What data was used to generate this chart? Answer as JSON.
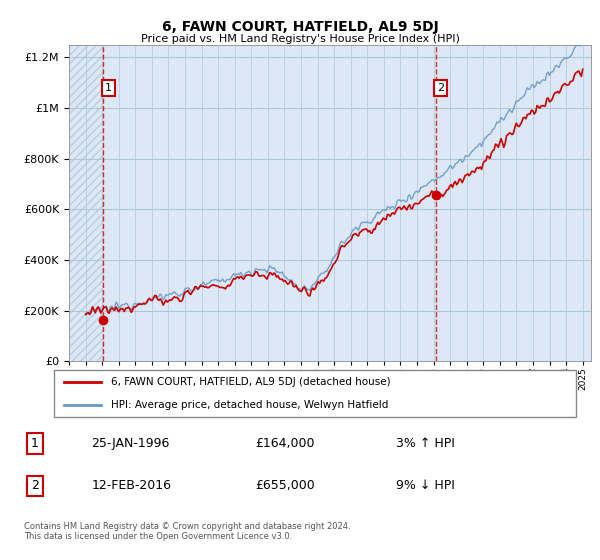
{
  "title": "6, FAWN COURT, HATFIELD, AL9 5DJ",
  "subtitle": "Price paid vs. HM Land Registry's House Price Index (HPI)",
  "legend_line1": "6, FAWN COURT, HATFIELD, AL9 5DJ (detached house)",
  "legend_line2": "HPI: Average price, detached house, Welwyn Hatfield",
  "annotation1_label": "1",
  "annotation1_date": "25-JAN-1996",
  "annotation1_price": "£164,000",
  "annotation1_hpi": "3% ↑ HPI",
  "annotation2_label": "2",
  "annotation2_date": "12-FEB-2016",
  "annotation2_price": "£655,000",
  "annotation2_hpi": "9% ↓ HPI",
  "footer": "Contains HM Land Registry data © Crown copyright and database right 2024.\nThis data is licensed under the Open Government Licence v3.0.",
  "xmin": 1994.0,
  "xmax": 2025.5,
  "ymin": 0,
  "ymax": 1250000,
  "marker1_x": 1996.07,
  "marker1_y": 164000,
  "marker2_x": 2016.12,
  "marker2_y": 655000,
  "bg_color": "#dce8f5",
  "hatch_color": "#b8cfdf",
  "grid_color": "#b0c4d8",
  "line_color_red": "#cc0000",
  "line_color_blue": "#6699cc",
  "marker_color": "#cc0000",
  "dashed_line_color": "#cc0000",
  "yticks": [
    0,
    200000,
    400000,
    600000,
    800000,
    1000000,
    1200000
  ]
}
